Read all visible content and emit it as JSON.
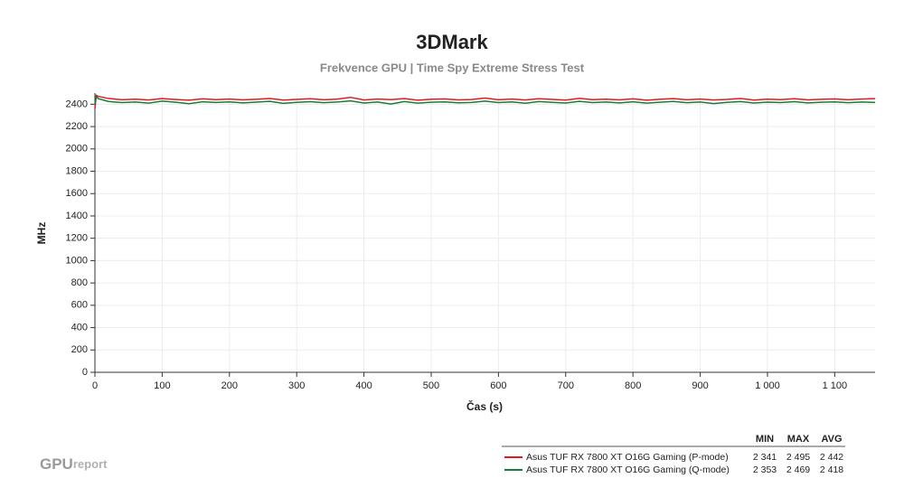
{
  "chart_data": {
    "type": "line",
    "title": "3DMark",
    "subtitle": "Frekvence GPU | Time Spy Extreme Stress Test",
    "x_label": "Čas (s)",
    "y_label": "MHz",
    "x": [
      0,
      2,
      5,
      20,
      40,
      60,
      80,
      100,
      120,
      140,
      160,
      180,
      200,
      220,
      240,
      260,
      280,
      300,
      320,
      340,
      360,
      380,
      400,
      420,
      440,
      460,
      480,
      500,
      520,
      540,
      560,
      580,
      600,
      620,
      640,
      660,
      680,
      700,
      720,
      740,
      760,
      780,
      800,
      820,
      840,
      860,
      880,
      900,
      920,
      940,
      960,
      980,
      1000,
      1020,
      1040,
      1060,
      1080,
      1100,
      1120,
      1140,
      1160
    ],
    "series": [
      {
        "name": "Asus TUF RX 7800 XT O16G Gaming (P-mode)",
        "color": "#e41a1c",
        "values": [
          2360,
          2480,
          2470,
          2452,
          2440,
          2445,
          2438,
          2450,
          2442,
          2436,
          2448,
          2441,
          2446,
          2439,
          2444,
          2451,
          2437,
          2443,
          2449,
          2440,
          2445,
          2462,
          2438,
          2446,
          2441,
          2450,
          2436,
          2444,
          2447,
          2439,
          2442,
          2455,
          2440,
          2446,
          2438,
          2449,
          2443,
          2437,
          2452,
          2441,
          2445,
          2439,
          2448,
          2436,
          2444,
          2450,
          2440,
          2446,
          2438,
          2443,
          2451,
          2437,
          2445,
          2441,
          2449,
          2439,
          2444,
          2447,
          2440,
          2446,
          2450
        ],
        "stats": [
          2341,
          2495,
          2442
        ],
        "stats_labels": [
          "2 341",
          "2 495",
          "2 442"
        ]
      },
      {
        "name": "Asus TUF RX 7800 XT O16G Gaming (Q-mode)",
        "color": "#1b7a3e",
        "values": [
          2400,
          2470,
          2450,
          2425,
          2415,
          2420,
          2410,
          2428,
          2418,
          2405,
          2422,
          2416,
          2421,
          2412,
          2419,
          2426,
          2408,
          2417,
          2423,
          2414,
          2420,
          2430,
          2411,
          2420,
          2402,
          2424,
          2410,
          2418,
          2421,
          2413,
          2416,
          2428,
          2415,
          2421,
          2409,
          2424,
          2417,
          2411,
          2426,
          2415,
          2420,
          2412,
          2422,
          2410,
          2418,
          2425,
          2414,
          2420,
          2406,
          2417,
          2424,
          2411,
          2419,
          2415,
          2423,
          2412,
          2418,
          2421,
          2414,
          2420,
          2416
        ],
        "stats": [
          2353,
          2469,
          2418
        ],
        "stats_labels": [
          "2 353",
          "2 469",
          "2 418"
        ]
      }
    ],
    "stats_columns": [
      "MIN",
      "MAX",
      "AVG"
    ],
    "xlim": [
      0,
      1160
    ],
    "ylim": [
      0,
      2500
    ],
    "xticks": [
      0,
      100,
      200,
      300,
      400,
      500,
      600,
      700,
      800,
      900,
      {
        "value": 1000,
        "label": "1 000"
      },
      {
        "value": 1100,
        "label": "1 100"
      }
    ],
    "yticks": [
      0,
      200,
      400,
      600,
      800,
      1000,
      1200,
      1400,
      1600,
      1800,
      2000,
      2200,
      2400
    ],
    "grid": true,
    "brand": {
      "bold": "GPU",
      "light": "report"
    }
  }
}
